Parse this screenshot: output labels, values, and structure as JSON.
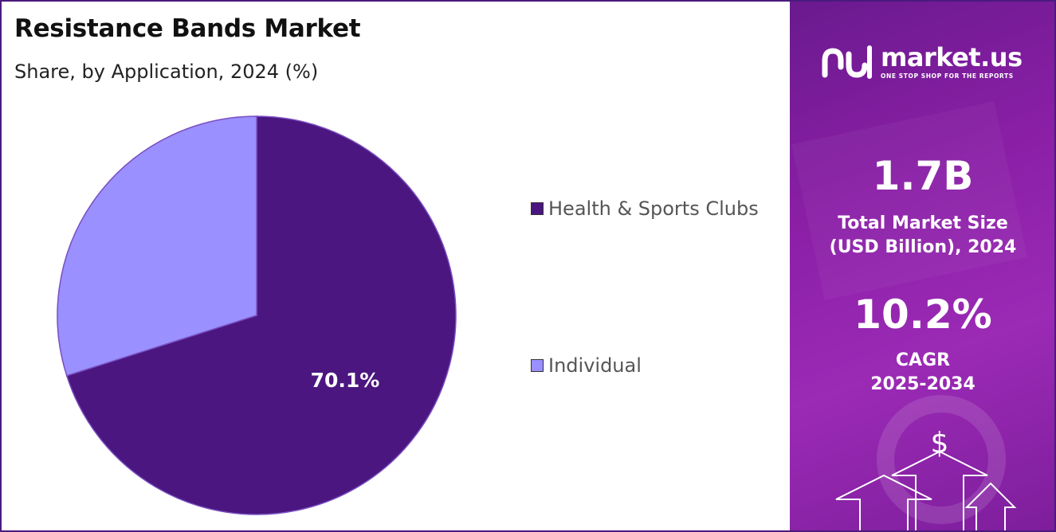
{
  "chart_data": {
    "type": "pie",
    "title": "Resistance Bands Market",
    "subtitle": "Share, by Application, 2024 (%)",
    "slices": [
      {
        "name": "Health & Sports Clubs",
        "value": 70.1,
        "label": "70.1%",
        "color": "#4b1680"
      },
      {
        "name": "Individual",
        "value": 29.9,
        "label": "",
        "color": "#9a90ff"
      }
    ],
    "legend_position": "right"
  },
  "sidebar": {
    "logo_name": "market.us",
    "logo_tagline": "ONE STOP SHOP FOR THE REPORTS",
    "market_size_value": "1.7B",
    "market_size_label_line1": "Total Market Size",
    "market_size_label_line2": "(USD Billion), 2024",
    "cagr_value": "10.2%",
    "cagr_label_line1": "CAGR",
    "cagr_label_line2": "2025-2034",
    "dollar_symbol": "$",
    "colors": {
      "background": "#8a1fa6",
      "text": "#ffffff"
    }
  }
}
